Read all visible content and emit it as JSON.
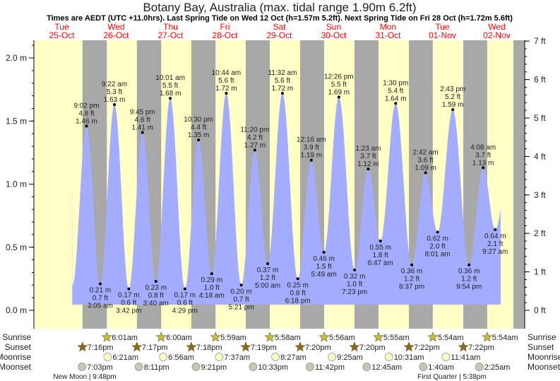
{
  "title": "Botany Bay, Australia (max. tidal range 1.90m 6.2ft)",
  "subtitle": "Times are AEDT (UTC +11.0hrs). Last Spring Tide on Wed 12 Oct (h=1.57m 5.2ft). Next Spring Tide on Fri 28 Oct (h=1.72m 5.6ft)",
  "colors": {
    "day": "#ffffc6",
    "night": "#a8a8a8",
    "water": "#a3acff",
    "dayLabel": "#ff0000",
    "sunrise": "#c4bc4a",
    "sunset": "#8a6a1e",
    "moonrise": "#ffffc8",
    "moonset": "#c8c6b4"
  },
  "days": [
    {
      "name": "Tue",
      "date": "25-Oct"
    },
    {
      "name": "Wed",
      "date": "26-Oct"
    },
    {
      "name": "Thu",
      "date": "27-Oct"
    },
    {
      "name": "Fri",
      "date": "28-Oct"
    },
    {
      "name": "Sat",
      "date": "29-Oct"
    },
    {
      "name": "Sun",
      "date": "30-Oct"
    },
    {
      "name": "Mon",
      "date": "31-Oct"
    },
    {
      "name": "Tue",
      "date": "01-Nov"
    },
    {
      "name": "Wed",
      "date": "02-Nov"
    }
  ],
  "row_labels": {
    "sunrise": "Sunrise",
    "sunset": "Sunset",
    "moonrise": "Moonrise",
    "moonset": "Moonset"
  },
  "moon_phases": [
    {
      "text": "New Moon | 9:48pm"
    },
    {
      "text": "First Quarter | 5:38pm"
    }
  ],
  "chart_data": {
    "type": "area",
    "title": "Botany Bay, Australia (max. tidal range 1.90m 6.2ft)",
    "ylabel_left": "m",
    "ylabel_right": "ft",
    "ylim_m": [
      0,
      2.15
    ],
    "left_ticks": [
      "0.0 m",
      "0.5 m",
      "1.0 m",
      "1.5 m",
      "2.0 m"
    ],
    "left_tick_values": [
      0,
      0.5,
      1.0,
      1.5,
      2.0
    ],
    "right_ticks": [
      "0 ft",
      "1 ft",
      "2 ft",
      "3 ft",
      "4 ft",
      "5 ft",
      "6 ft",
      "7 ft"
    ],
    "start": {
      "day": 0,
      "time": "1:50pm",
      "m": 1.17
    },
    "pre_low": {
      "day": 0,
      "time": "2:50pm",
      "m": 0.2
    },
    "end": {
      "day": 8,
      "time": "11:20am",
      "m": 0.7
    },
    "extremes": [
      {
        "day": 0,
        "type": "high",
        "time": "9:02 pm",
        "ft": "4.8 ft",
        "m": 1.46
      },
      {
        "day": 1,
        "type": "low",
        "time": "3:05 am",
        "ft": "0.7 ft",
        "m": 0.21
      },
      {
        "day": 1,
        "type": "high",
        "time": "9:22 am",
        "ft": "5.3 ft",
        "m": 1.63
      },
      {
        "day": 1,
        "type": "low",
        "time": "3:42 pm",
        "ft": "0.6 ft",
        "m": 0.17
      },
      {
        "day": 1,
        "type": "high",
        "time": "9:45 pm",
        "ft": "4.6 ft",
        "m": 1.41
      },
      {
        "day": 2,
        "type": "low",
        "time": "3:40 am",
        "ft": "0.8 ft",
        "m": 0.23
      },
      {
        "day": 2,
        "type": "high",
        "time": "10:01 am",
        "ft": "5.5 ft",
        "m": 1.68
      },
      {
        "day": 2,
        "type": "low",
        "time": "4:29 pm",
        "ft": "0.6 ft",
        "m": 0.17
      },
      {
        "day": 2,
        "type": "high",
        "time": "10:30 pm",
        "ft": "4.4 ft",
        "m": 1.35
      },
      {
        "day": 3,
        "type": "low",
        "time": "4:18 am",
        "ft": "1.0 ft",
        "m": 0.29
      },
      {
        "day": 3,
        "type": "high",
        "time": "10:44 am",
        "ft": "5.6 ft",
        "m": 1.72
      },
      {
        "day": 3,
        "type": "low",
        "time": "5:21 pm",
        "ft": "0.7 ft",
        "m": 0.2
      },
      {
        "day": 3,
        "type": "high",
        "time": "11:20 pm",
        "ft": "4.2 ft",
        "m": 1.27
      },
      {
        "day": 4,
        "type": "low",
        "time": "5:00 am",
        "ft": "1.2 ft",
        "m": 0.37
      },
      {
        "day": 4,
        "type": "high",
        "time": "11:32 am",
        "ft": "5.6 ft",
        "m": 1.72
      },
      {
        "day": 4,
        "type": "low",
        "time": "6:18 pm",
        "ft": "0.8 ft",
        "m": 0.25
      },
      {
        "day": 5,
        "type": "high",
        "time": "12:16 am",
        "ft": "3.9 ft",
        "m": 1.19
      },
      {
        "day": 5,
        "type": "low",
        "time": "5:49 am",
        "ft": "1.5 ft",
        "m": 0.46
      },
      {
        "day": 5,
        "type": "high",
        "time": "12:26 pm",
        "ft": "5.5 ft",
        "m": 1.69
      },
      {
        "day": 5,
        "type": "low",
        "time": "7:23 pm",
        "ft": "1.0 ft",
        "m": 0.32
      },
      {
        "day": 6,
        "type": "high",
        "time": "1:23 am",
        "ft": "3.7 ft",
        "m": 1.12
      },
      {
        "day": 6,
        "type": "low",
        "time": "6:47 am",
        "ft": "1.8 ft",
        "m": 0.55
      },
      {
        "day": 6,
        "type": "high",
        "time": "1:30 pm",
        "ft": "5.4 ft",
        "m": 1.64
      },
      {
        "day": 6,
        "type": "low",
        "time": "8:37 pm",
        "ft": "1.2 ft",
        "m": 0.36
      },
      {
        "day": 7,
        "type": "high",
        "time": "2:42 am",
        "ft": "3.6 ft",
        "m": 1.09
      },
      {
        "day": 7,
        "type": "low",
        "time": "8:01 am",
        "ft": "2.0 ft",
        "m": 0.62
      },
      {
        "day": 7,
        "type": "high",
        "time": "2:43 pm",
        "ft": "5.2 ft",
        "m": 1.59
      },
      {
        "day": 7,
        "type": "low",
        "time": "9:54 pm",
        "ft": "1.2 ft",
        "m": 0.36
      },
      {
        "day": 8,
        "type": "high",
        "time": "4:08 am",
        "ft": "3.7 ft",
        "m": 1.13
      },
      {
        "day": 8,
        "type": "low",
        "time": "9:27 am",
        "ft": "2.1 ft",
        "m": 0.64
      }
    ],
    "sunrise": [
      {
        "day": 1,
        "time": "6:01am"
      },
      {
        "day": 2,
        "time": "6:00am"
      },
      {
        "day": 3,
        "time": "5:59am"
      },
      {
        "day": 4,
        "time": "5:58am"
      },
      {
        "day": 5,
        "time": "5:56am"
      },
      {
        "day": 6,
        "time": "5:55am"
      },
      {
        "day": 7,
        "time": "5:54am"
      },
      {
        "day": 8,
        "time": "5:54am"
      }
    ],
    "sunset": [
      {
        "day": 0,
        "time": "7:16pm"
      },
      {
        "day": 1,
        "time": "7:17pm"
      },
      {
        "day": 2,
        "time": "7:18pm"
      },
      {
        "day": 3,
        "time": "7:19pm"
      },
      {
        "day": 4,
        "time": "7:20pm"
      },
      {
        "day": 5,
        "time": "7:20pm"
      },
      {
        "day": 6,
        "time": "7:22pm"
      },
      {
        "day": 7,
        "time": "7:22pm"
      }
    ],
    "moonrise": [
      {
        "day": 1,
        "time": "6:21am"
      },
      {
        "day": 2,
        "time": "6:56am"
      },
      {
        "day": 3,
        "time": "7:37am"
      },
      {
        "day": 4,
        "time": "8:27am"
      },
      {
        "day": 5,
        "time": "9:25am"
      },
      {
        "day": 6,
        "time": "10:31am"
      },
      {
        "day": 7,
        "time": "11:41am"
      }
    ],
    "moonset": [
      {
        "day": 0,
        "time": "7:03pm"
      },
      {
        "day": 1,
        "time": "8:11pm"
      },
      {
        "day": 2,
        "time": "9:21pm"
      },
      {
        "day": 3,
        "time": "10:33pm"
      },
      {
        "day": 4,
        "time": "11:42pm"
      },
      {
        "day": 6,
        "time": "12:45am"
      },
      {
        "day": 7,
        "time": "1:40am"
      },
      {
        "day": 8,
        "time": "2:25am"
      }
    ]
  }
}
